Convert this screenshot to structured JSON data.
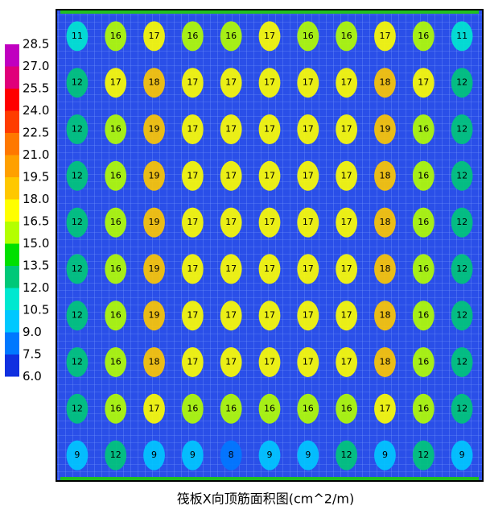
{
  "chart_data": {
    "type": "heatmap",
    "title": "筏板X向顶筋面积图(cm^2/m)",
    "colorbar": {
      "levels": [
        28.5,
        27.0,
        25.5,
        24.0,
        22.5,
        21.0,
        19.5,
        18.0,
        16.5,
        15.0,
        13.5,
        12.0,
        10.5,
        9.0,
        7.5,
        6.0
      ],
      "level_labels": [
        "28.5",
        "27.0",
        "25.5",
        "24.0",
        "22.5",
        "21.0",
        "19.5",
        "18.0",
        "16.5",
        "15.0",
        "13.5",
        "12.0",
        "10.5",
        "9.0",
        "7.5",
        "6.0"
      ],
      "colors": [
        "#c000c0",
        "#e0007a",
        "#ff0000",
        "#ff3c00",
        "#ff7800",
        "#ffa000",
        "#ffc800",
        "#ffff00",
        "#b4ff00",
        "#00e000",
        "#00c878",
        "#00e8d0",
        "#00c8ff",
        "#0078ff",
        "#1030e0"
      ]
    },
    "z": [
      [
        11,
        16,
        17,
        16,
        16,
        17,
        16,
        16,
        17,
        16,
        11
      ],
      [
        12,
        17,
        18,
        17,
        17,
        17,
        17,
        17,
        18,
        17,
        12
      ],
      [
        12,
        16,
        19,
        17,
        17,
        17,
        17,
        17,
        19,
        16,
        12
      ],
      [
        12,
        16,
        19,
        17,
        17,
        17,
        17,
        17,
        18,
        16,
        12
      ],
      [
        12,
        16,
        19,
        17,
        17,
        17,
        17,
        17,
        18,
        16,
        12
      ],
      [
        12,
        16,
        19,
        17,
        17,
        17,
        17,
        17,
        18,
        16,
        12
      ],
      [
        12,
        16,
        19,
        17,
        17,
        17,
        17,
        17,
        18,
        16,
        12
      ],
      [
        12,
        16,
        18,
        17,
        17,
        17,
        17,
        17,
        18,
        16,
        12
      ],
      [
        12,
        16,
        17,
        16,
        16,
        16,
        16,
        16,
        17,
        16,
        12
      ],
      [
        9,
        12,
        9,
        9,
        8,
        9,
        9,
        12,
        9,
        12,
        9
      ]
    ]
  }
}
